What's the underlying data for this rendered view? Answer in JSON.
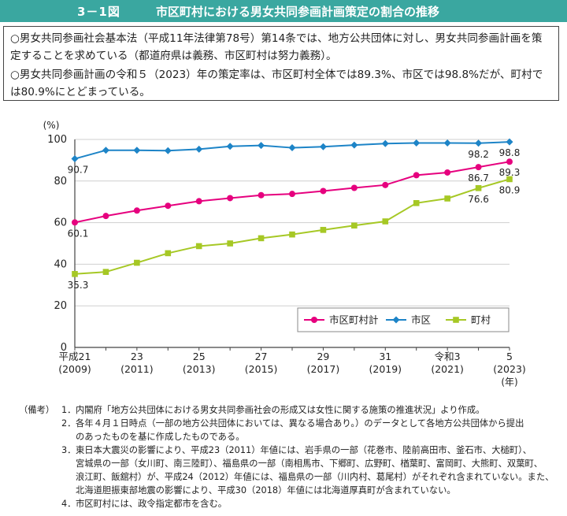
{
  "header": {
    "fig_no": "3－1図",
    "title": "市区町村における男女共同参画計画策定の割合の推移"
  },
  "summary": [
    "○男女共同参画社会基本法（平成11年法律第78号）第14条では、地方公共団体に対し、男女共同参画計画を策定することを求めている（都道府県は義務、市区町村は努力義務）。",
    "○男女共同参画計画の令和５（2023）年の策定率は、市区町村全体では89.3%、市区では98.8%だが、町村では80.9%にとどまっている。"
  ],
  "chart_data": {
    "type": "line",
    "x": [
      2009,
      2010,
      2011,
      2012,
      2013,
      2014,
      2015,
      2016,
      2017,
      2018,
      2019,
      2020,
      2021,
      2022,
      2023
    ],
    "y_unit_label": "(%)",
    "x_unit_label": "(年)",
    "ylim": [
      0,
      100
    ],
    "yticks": [
      0,
      20,
      40,
      60,
      80,
      100
    ],
    "xtick_labels": [
      {
        "x": 2009,
        "line1": "平成21",
        "line2": "(2009)"
      },
      {
        "x": 2011,
        "line1": "23",
        "line2": "(2011)"
      },
      {
        "x": 2013,
        "line1": "25",
        "line2": "(2013)"
      },
      {
        "x": 2015,
        "line1": "27",
        "line2": "(2015)"
      },
      {
        "x": 2017,
        "line1": "29",
        "line2": "(2017)"
      },
      {
        "x": 2019,
        "line1": "31",
        "line2": "(2019)"
      },
      {
        "x": 2021,
        "line1": "令和3",
        "line2": "(2021)"
      },
      {
        "x": 2023,
        "line1": "5",
        "line2": "(2023)"
      }
    ],
    "series": [
      {
        "name": "市区町村計",
        "color": "#e6007e",
        "marker": "circle",
        "values": [
          60.1,
          63.2,
          65.8,
          68.1,
          70.3,
          71.8,
          73.2,
          73.8,
          75.2,
          76.7,
          78.1,
          82.8,
          84.1,
          86.7,
          89.3
        ],
        "labels": [
          {
            "i": 0,
            "text": "60.1",
            "pos": "below"
          },
          {
            "i": 13,
            "text": "86.7",
            "pos": "below"
          },
          {
            "i": 14,
            "text": "89.3",
            "pos": "below"
          }
        ]
      },
      {
        "name": "市区",
        "color": "#1d84c7",
        "marker": "diamond",
        "values": [
          90.7,
          94.8,
          94.8,
          94.6,
          95.3,
          96.7,
          97.1,
          96.0,
          96.5,
          97.3,
          98.0,
          98.3,
          98.3,
          98.2,
          98.8
        ],
        "labels": [
          {
            "i": 0,
            "text": "90.7",
            "pos": "below"
          },
          {
            "i": 13,
            "text": "98.2",
            "pos": "below"
          },
          {
            "i": 14,
            "text": "98.8",
            "pos": "below"
          }
        ]
      },
      {
        "name": "町村",
        "color": "#a6c825",
        "marker": "square",
        "values": [
          35.3,
          36.3,
          40.7,
          45.3,
          48.7,
          50.0,
          52.5,
          54.3,
          56.5,
          58.6,
          60.6,
          69.4,
          71.6,
          76.6,
          80.9
        ],
        "labels": [
          {
            "i": 0,
            "text": "35.3",
            "pos": "below"
          },
          {
            "i": 13,
            "text": "76.6",
            "pos": "below"
          },
          {
            "i": 14,
            "text": "80.9",
            "pos": "below"
          }
        ]
      }
    ],
    "legend_position": "bottom-right"
  },
  "notes": {
    "head": "（備考）",
    "items": [
      {
        "num": "1．",
        "lines": [
          "内閣府「地方公共団体における男女共同参画社会の形成又は女性に関する施策の推進状況」より作成。"
        ]
      },
      {
        "num": "2．",
        "lines": [
          "各年４月１日時点（一部の地方公共団体においては、異なる場合あり。）のデータとして各地方公共団体から提出",
          "のあったものを基に作成したものである。"
        ]
      },
      {
        "num": "3．",
        "lines": [
          "東日本大震災の影響により、平成23（2011）年値には、岩手県の一部（花巻市、陸前高田市、釜石市、大槌町）、",
          "宮城県の一部（女川町、南三陸町）、福島県の一部（南相馬市、下郷町、広野町、楢葉町、富岡町、大熊町、双葉町、",
          "浪江町、飯舘村）が、平成24（2012）年値には、福島県の一部（川内村、葛尾村）がそれぞれ含まれていない。また、",
          "北海道胆振東部地震の影響により、平成30（2018）年値には北海道厚真町が含まれていない。"
        ]
      },
      {
        "num": "4．",
        "lines": [
          "市区町村には、政令指定都市を含む。"
        ]
      }
    ]
  }
}
